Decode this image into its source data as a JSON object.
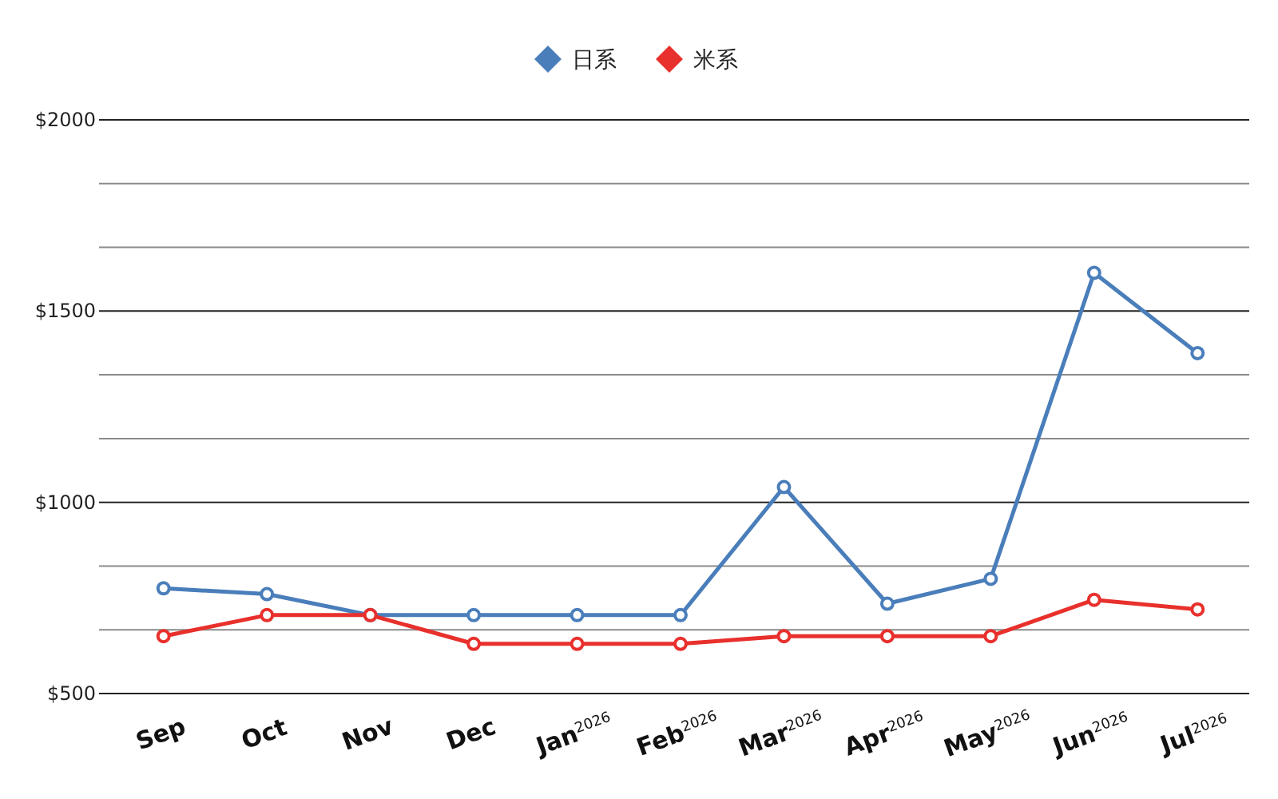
{
  "chart_data": {
    "type": "line",
    "categories": [
      "Sep",
      "Oct",
      "Nov",
      "Dec",
      "Jan$^{2026}$",
      "Feb$^{2026}$",
      "Mar$^{2026}$",
      "Apr$^{2026}$",
      "May$^{2026}$",
      "Jun$^{2026}$",
      "Jul$^{2026}$"
    ],
    "series": [
      {
        "name": "日系",
        "color": "#4a7ebb",
        "values": [
          775,
          760,
          705,
          705,
          705,
          705,
          1040,
          735,
          800,
          1600,
          1390
        ]
      },
      {
        "name": "米系",
        "color": "#e8302c",
        "values": [
          650,
          705,
          705,
          630,
          630,
          630,
          650,
          650,
          650,
          745,
          720
        ]
      }
    ],
    "ylim": [
      500,
      2000
    ],
    "yticks": [
      {
        "value": 500,
        "label": "$500"
      },
      {
        "value": 666.67,
        "label": null
      },
      {
        "value": 833.33,
        "label": null
      },
      {
        "value": 1000,
        "label": "$1000"
      },
      {
        "value": 1166.67,
        "label": null
      },
      {
        "value": 1333.33,
        "label": null
      },
      {
        "value": 1500,
        "label": "$1500"
      },
      {
        "value": 1666.67,
        "label": null
      },
      {
        "value": 1833.33,
        "label": null
      },
      {
        "value": 2000,
        "label": "$2000"
      }
    ],
    "grid": "y",
    "legend": "top",
    "marker": "circle",
    "line_style": "solid"
  }
}
